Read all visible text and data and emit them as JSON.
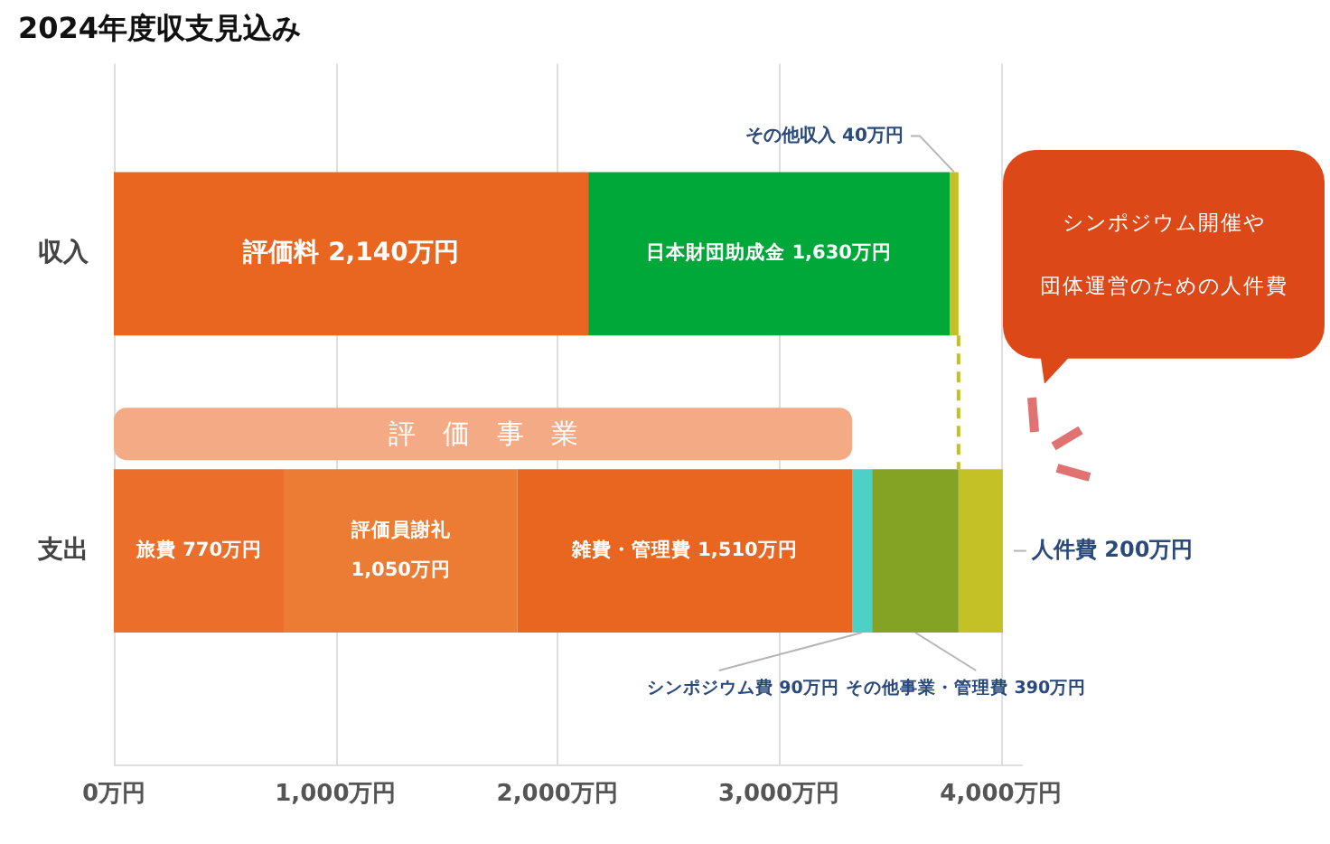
{
  "chart_data": {
    "type": "bar",
    "orientation": "horizontal",
    "stacked": true,
    "title": "2024年度収支見込み",
    "categories": [
      "収入",
      "支出"
    ],
    "series": [
      {
        "name": "評価料",
        "color": "#e8661f",
        "values": [
          2140,
          null
        ],
        "value_labels": [
          "2,140万円",
          null
        ]
      },
      {
        "name": "日本財団助成金",
        "color": "#00a83a",
        "values": [
          1630,
          null
        ],
        "value_labels": [
          "1,630万円",
          null
        ]
      },
      {
        "name": "その他収入",
        "color": "#c3c125",
        "values": [
          40,
          null
        ],
        "value_labels": [
          "40万円",
          null
        ]
      },
      {
        "name": "旅費",
        "color": "#eb6f2b",
        "values": [
          null,
          770
        ],
        "value_labels": [
          null,
          "770万円"
        ]
      },
      {
        "name": "評価員謝礼",
        "color": "#ec7b33",
        "values": [
          null,
          1050
        ],
        "value_labels": [
          null,
          "1,050万円"
        ]
      },
      {
        "name": "雑費・管理費",
        "color": "#e8661f",
        "values": [
          null,
          1510
        ],
        "value_labels": [
          null,
          "1,510万円"
        ]
      },
      {
        "name": "シンポジウム費",
        "color": "#4dd0c6",
        "values": [
          null,
          90
        ],
        "value_labels": [
          null,
          "90万円"
        ]
      },
      {
        "name": "その他事業・管理費",
        "color": "#84a224",
        "values": [
          null,
          390
        ],
        "value_labels": [
          null,
          "390万円"
        ]
      },
      {
        "name": "人件費",
        "color": "#c3c125",
        "values": [
          null,
          200
        ],
        "value_labels": [
          null,
          "200万円"
        ]
      }
    ],
    "xlim": [
      0,
      4100
    ],
    "xticks": [
      {
        "value": 0,
        "label": "0万円"
      },
      {
        "value": 1000,
        "label": "1,000万円"
      },
      {
        "value": 2000,
        "label": "2,000万円"
      },
      {
        "value": 3000,
        "label": "3,000万円"
      },
      {
        "value": 4000,
        "label": "4,000万円"
      }
    ],
    "grid": "x",
    "bands": [
      {
        "axis": "x",
        "from": 0,
        "to": 3330,
        "label": "評価事業",
        "color": "#f4ab85"
      }
    ],
    "ref_lines": [
      {
        "axis": "x",
        "value": 3810,
        "color": "#c3c125",
        "line_style": "dashed"
      }
    ],
    "annotations": [
      "シンポジウム開催や",
      "団体運営のための人件費"
    ]
  }
}
